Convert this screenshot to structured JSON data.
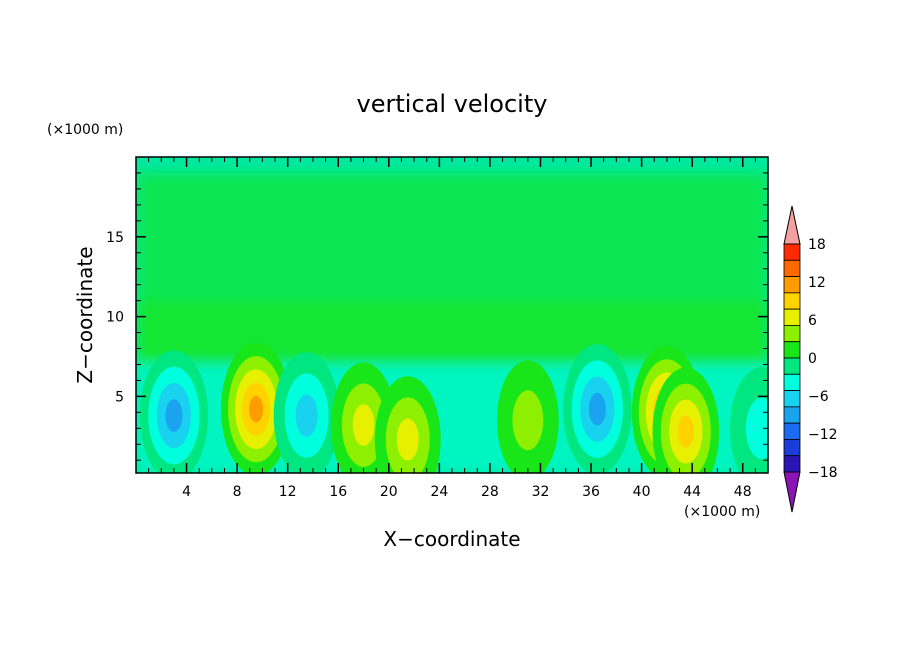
{
  "chart_data": {
    "type": "heatmap",
    "title": "vertical velocity",
    "xlabel": "X−coordinate",
    "ylabel": "Z−coordinate",
    "x_unit": "(×1000 m)",
    "y_unit": "(×1000 m)",
    "xlim": [
      0,
      50
    ],
    "ylim": [
      0.2,
      20
    ],
    "x_ticks": [
      "4",
      "8",
      "12",
      "16",
      "20",
      "24",
      "28",
      "32",
      "36",
      "40",
      "44",
      "48"
    ],
    "y_ticks": [
      "5",
      "10",
      "15"
    ],
    "colorbar": {
      "ticks": [
        "18",
        "12",
        "6",
        "0",
        "−6",
        "−12",
        "−18"
      ],
      "levels": [
        -21,
        -18,
        -15,
        -12,
        -9,
        -6,
        -3,
        0,
        3,
        6,
        9,
        12,
        15,
        18,
        21
      ],
      "colors": [
        "#6f14a8",
        "#2b14b4",
        "#1a3cd8",
        "#1c6af0",
        "#1aa4f0",
        "#18d2f0",
        "#00ffdc",
        "#00e680",
        "#18e618",
        "#8cf000",
        "#e6f000",
        "#ffd200",
        "#ff9c00",
        "#ff6a00",
        "#ff2a00",
        "#e61a1a"
      ],
      "extend_high_color": "#f4a0a0",
      "extend_low_color": "#8c14b4"
    },
    "features": [
      {
        "x": 3,
        "z": 3.8,
        "value": -12
      },
      {
        "x": 9.5,
        "z": 4.2,
        "value": 14
      },
      {
        "x": 13.5,
        "z": 3.8,
        "value": -9
      },
      {
        "x": 18,
        "z": 3.2,
        "value": 8
      },
      {
        "x": 21.5,
        "z": 2.3,
        "value": 9
      },
      {
        "x": 31,
        "z": 3.5,
        "value": 4
      },
      {
        "x": 36.5,
        "z": 4.2,
        "value": -12
      },
      {
        "x": 42,
        "z": 4.0,
        "value": 14
      },
      {
        "x": 43.5,
        "z": 2.8,
        "value": 10
      },
      {
        "x": 49.5,
        "z": 3.0,
        "value": -6
      }
    ]
  }
}
